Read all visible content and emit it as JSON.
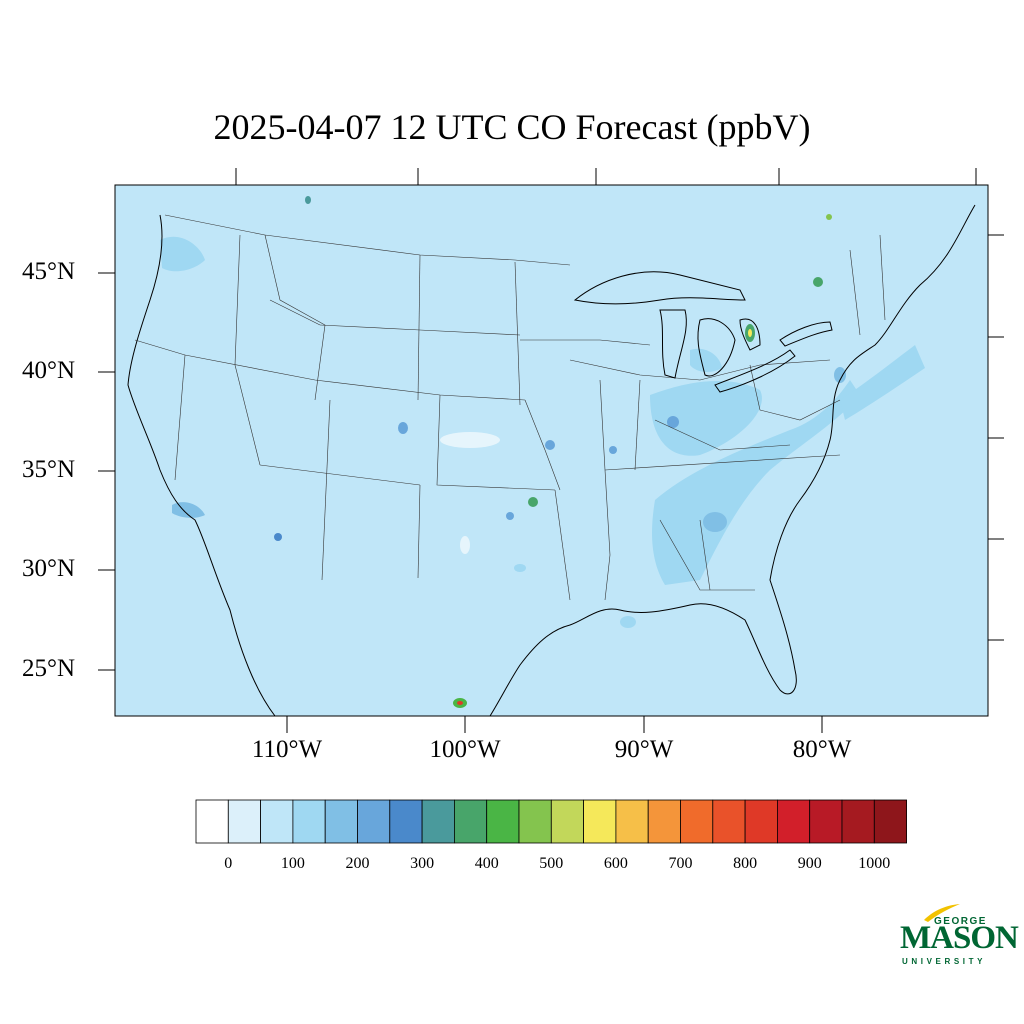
{
  "title": "2025-04-07 12 UTC CO Forecast (ppbV)",
  "map": {
    "background_color": "#c0e6f8",
    "latitude_labels": [
      "45°N",
      "40°N",
      "35°N",
      "30°N",
      "25°N"
    ],
    "longitude_labels": [
      "110°W",
      "100°W",
      "90°W",
      "80°W"
    ]
  },
  "colorbar": {
    "labels": [
      "0",
      "100",
      "200",
      "300",
      "400",
      "500",
      "600",
      "700",
      "800",
      "900",
      "1000"
    ],
    "colors": [
      "#ffffff",
      "#dcf0fa",
      "#bfe6f8",
      "#9fd8f2",
      "#80bfe5",
      "#68a6db",
      "#4a89cb",
      "#4a9a9c",
      "#48a56a",
      "#4ab545",
      "#84c44e",
      "#c2d75a",
      "#f5e85a",
      "#f6bf48",
      "#f4953a",
      "#f06b2b",
      "#e9522a",
      "#df3927",
      "#d21f2a",
      "#b81a26",
      "#a51a20",
      "#8e161b"
    ]
  },
  "logo": {
    "line1": "GEORGE",
    "line2": "MASON",
    "line3": "UNIVERSITY",
    "color": "#006633"
  }
}
